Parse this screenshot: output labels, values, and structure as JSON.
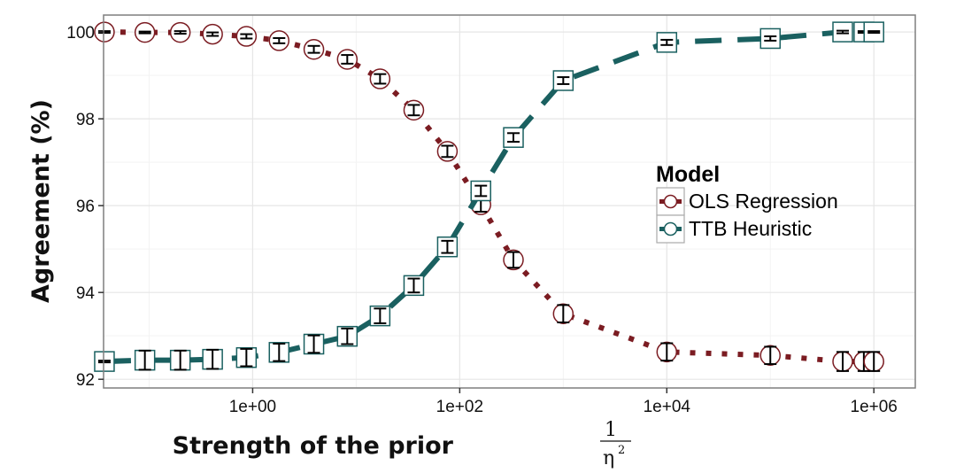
{
  "chart_data": {
    "type": "line",
    "xscale": "log",
    "xlabel": "Strength of the prior",
    "xlabel_math": {
      "numerator": "1",
      "denominator": "η",
      "exponent": "2"
    },
    "ylabel": "Agreement (%)",
    "xlim_log10": [
      -1.44,
      6.4
    ],
    "ylim": [
      91.8,
      100.39
    ],
    "x_ticks": [
      {
        "log10": 0,
        "label": "1e+00"
      },
      {
        "log10": 2,
        "label": "1e+02"
      },
      {
        "log10": 4,
        "label": "1e+04"
      },
      {
        "log10": 6,
        "label": "1e+06"
      }
    ],
    "y_ticks": [
      {
        "value": 92,
        "label": "92"
      },
      {
        "value": 94,
        "label": "94"
      },
      {
        "value": 96,
        "label": "96"
      },
      {
        "value": 98,
        "label": "98"
      },
      {
        "value": 100,
        "label": "100"
      }
    ],
    "grid": true,
    "legend": {
      "title": "Model",
      "placement": "right-center"
    },
    "x": [
      0.037,
      0.091,
      0.2,
      0.41,
      0.87,
      1.8,
      3.9,
      8.2,
      17,
      36,
      76,
      160,
      330,
      1000,
      10000,
      100000,
      500000,
      800000,
      1000000
    ],
    "series": [
      {
        "name": "OLS Regression",
        "color": "#7b1c22",
        "marker": "circle",
        "linestyle": "dotted",
        "values": [
          100.0,
          99.99,
          99.99,
          99.95,
          99.9,
          99.8,
          99.6,
          99.37,
          98.92,
          98.2,
          97.25,
          96.02,
          94.75,
          93.51,
          92.63,
          92.55,
          92.41,
          92.41,
          92.41
        ],
        "errors": [
          0.02,
          0.02,
          0.03,
          0.04,
          0.05,
          0.06,
          0.08,
          0.1,
          0.11,
          0.12,
          0.13,
          0.16,
          0.18,
          0.2,
          0.2,
          0.2,
          0.22,
          0.22,
          0.22
        ]
      },
      {
        "name": "TTB Heuristic",
        "color": "#1a6060",
        "marker": "square",
        "linestyle": "dashed",
        "values": [
          92.41,
          92.44,
          92.44,
          92.46,
          92.5,
          92.62,
          92.81,
          92.99,
          93.46,
          94.16,
          95.05,
          96.34,
          97.57,
          98.88,
          99.76,
          99.85,
          100.0,
          100.0,
          100.0
        ],
        "errors": [
          0.02,
          0.22,
          0.22,
          0.22,
          0.2,
          0.2,
          0.2,
          0.18,
          0.17,
          0.16,
          0.14,
          0.12,
          0.1,
          0.08,
          0.06,
          0.05,
          0.03,
          0.02,
          0.02
        ]
      }
    ]
  }
}
